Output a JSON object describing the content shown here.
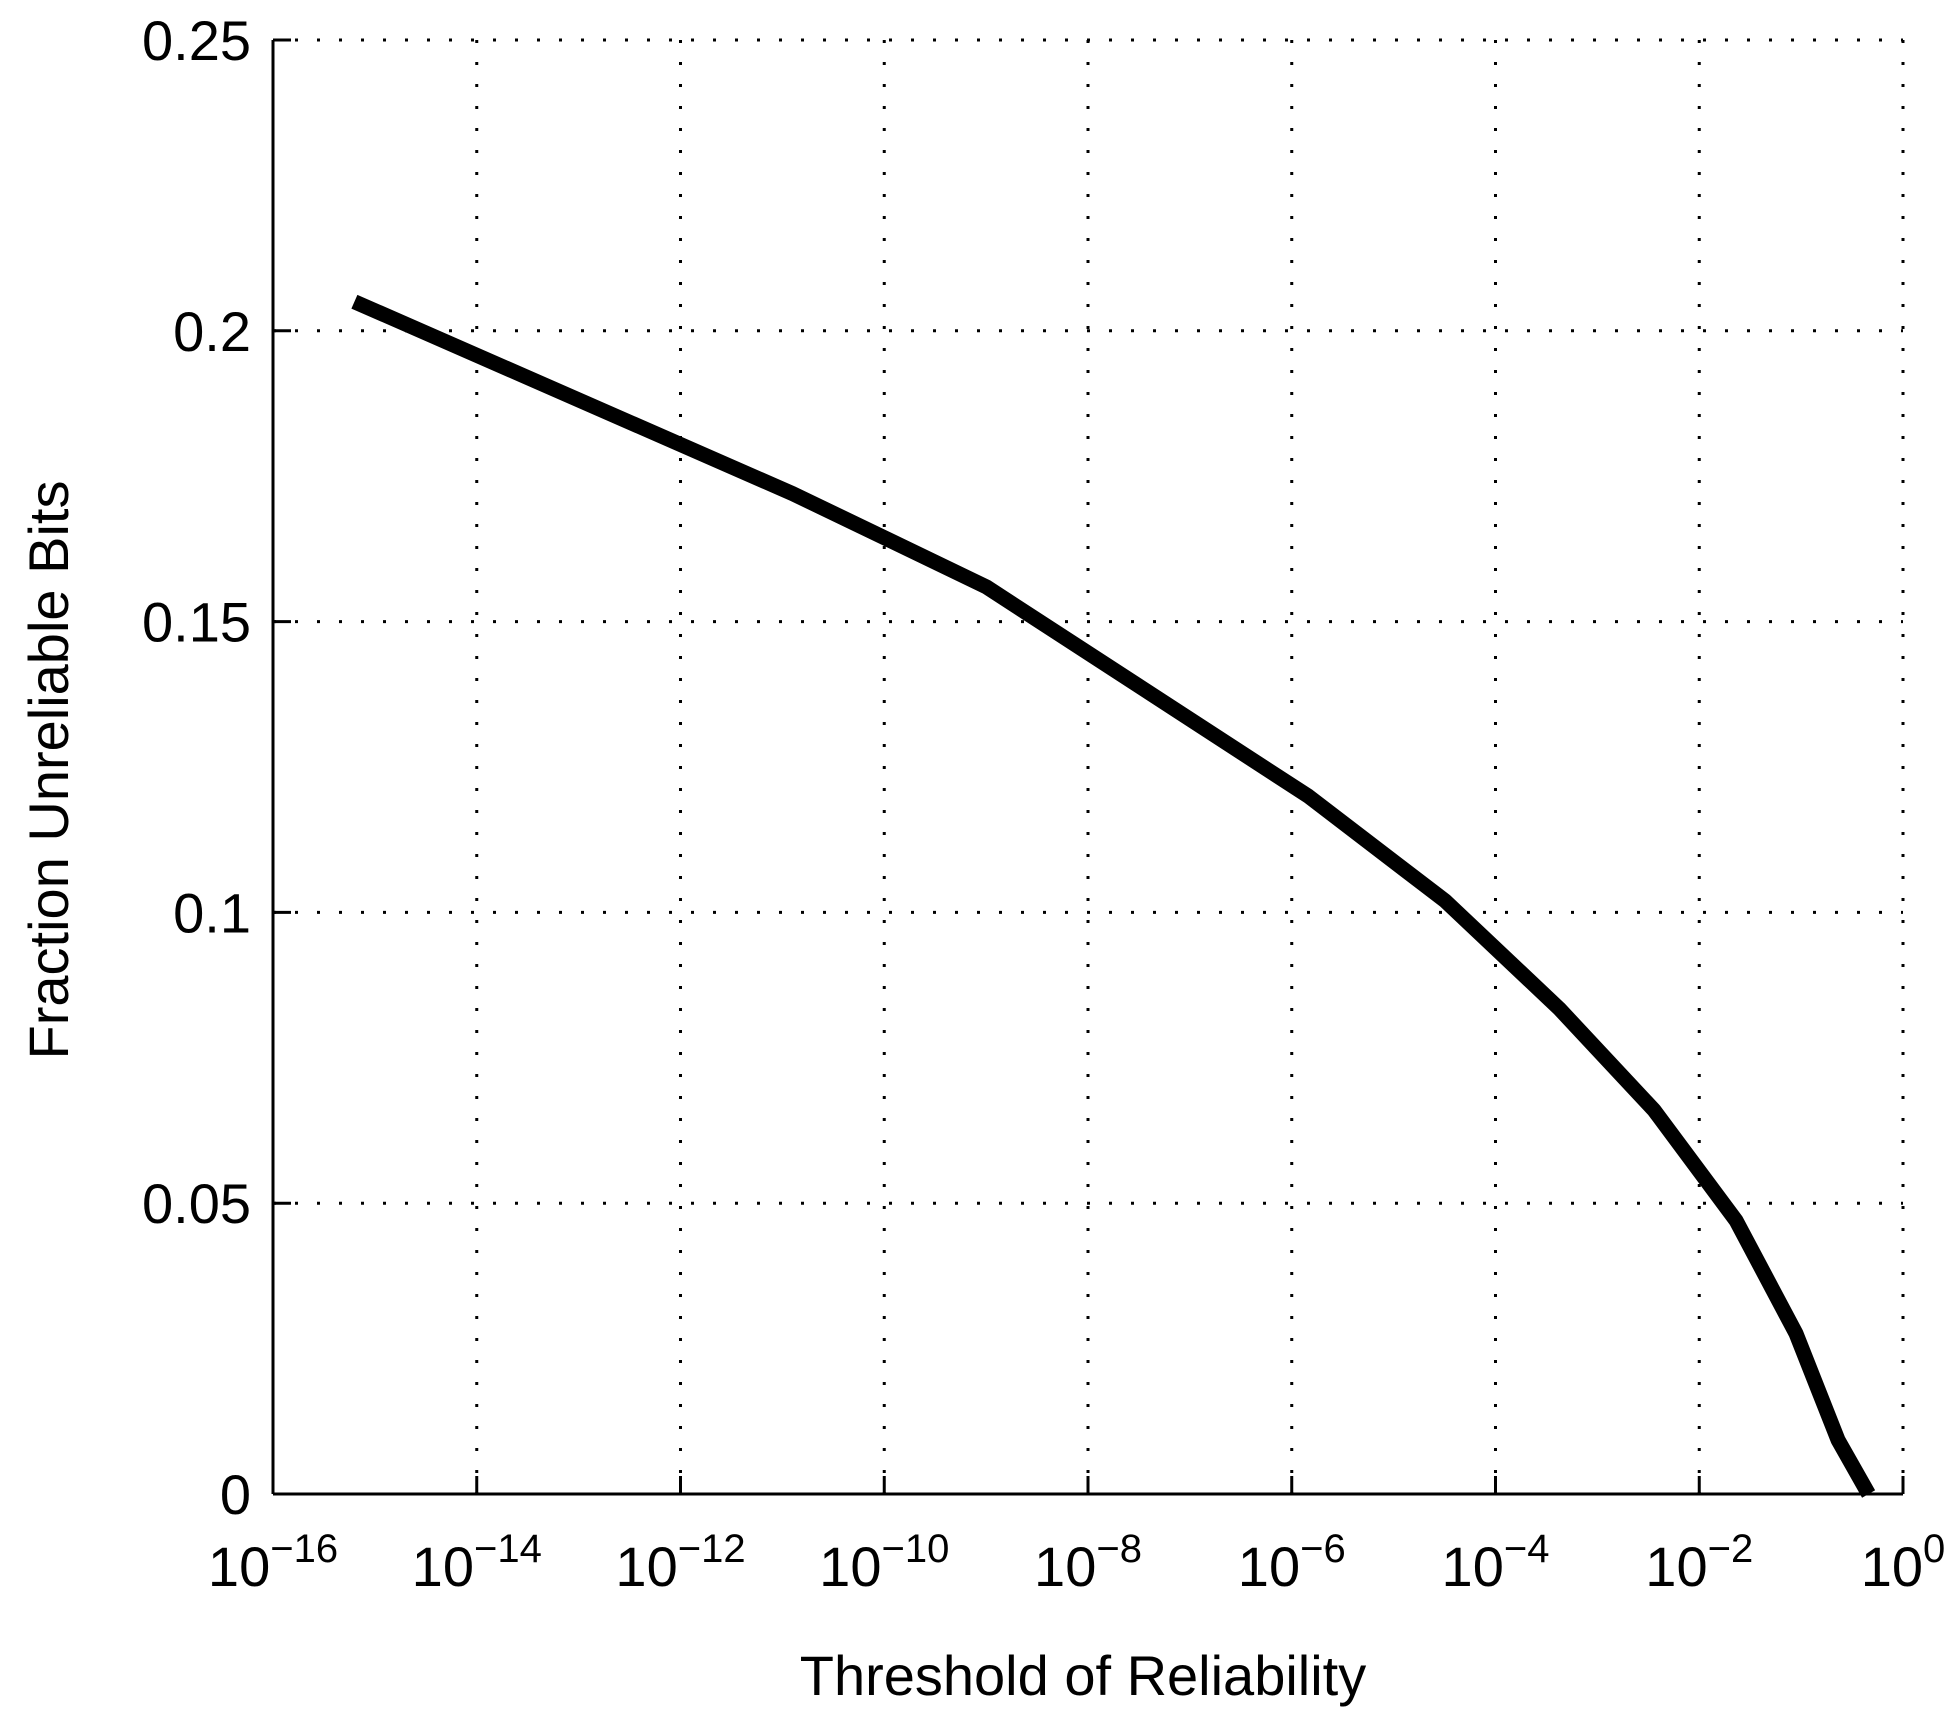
{
  "chart_data": {
    "type": "line",
    "x_label": "Threshold of Reliability",
    "y_label": "Fraction Unreliable Bits",
    "x_log": true,
    "grid": true,
    "xlim": [
      1e-16,
      1
    ],
    "xticks": [
      {
        "value": 1e-16,
        "label": "10^−16"
      },
      {
        "value": 1e-14,
        "label": "10^−14"
      },
      {
        "value": 1e-12,
        "label": "10^−12"
      },
      {
        "value": 1e-10,
        "label": "10^−10"
      },
      {
        "value": 1e-08,
        "label": "10^−8"
      },
      {
        "value": 1e-06,
        "label": "10^−6"
      },
      {
        "value": 0.0001,
        "label": "10^−4"
      },
      {
        "value": 0.01,
        "label": "10^−2"
      },
      {
        "value": 1,
        "label": "10^0"
      }
    ],
    "ylim": [
      0,
      0.25
    ],
    "yticks": [
      0,
      0.05,
      0.1,
      0.15,
      0.2,
      0.25
    ],
    "series": [
      {
        "color": "#000000",
        "x": [
          6.3e-16,
          1.26e-11,
          1e-09,
          1.45e-06,
          3.2e-05,
          0.00042,
          0.0036,
          0.023,
          0.089,
          0.23,
          0.46
        ],
        "values": [
          0.205,
          0.172,
          0.156,
          0.12,
          0.102,
          0.0835,
          0.066,
          0.047,
          0.0276,
          0.0093,
          0
        ]
      }
    ]
  }
}
